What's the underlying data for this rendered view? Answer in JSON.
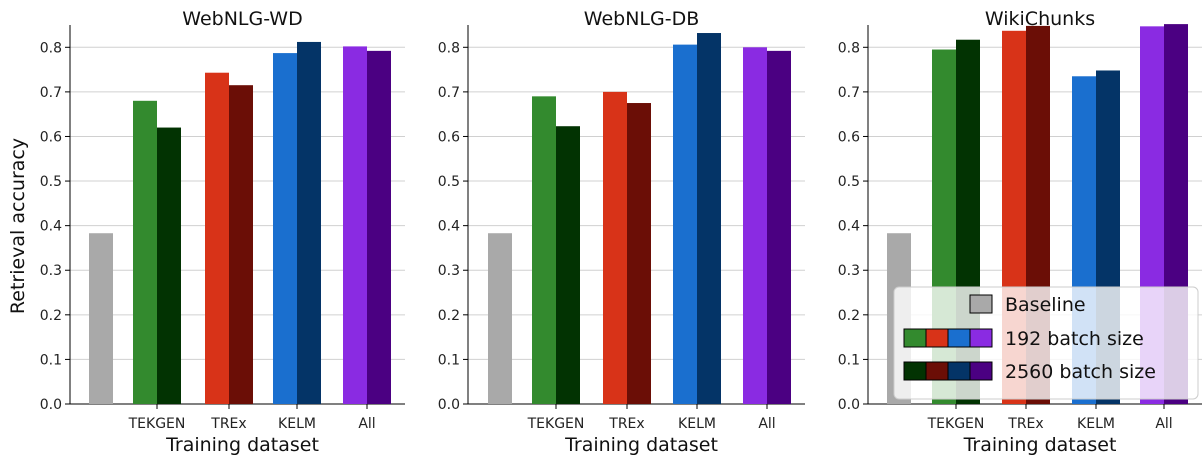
{
  "ylabel": "Retrieval accuracy",
  "colors": {
    "baseline": "#a9a9a9",
    "groups_192": [
      "#338a2e",
      "#d83318",
      "#1a6fcf",
      "#8a2be2"
    ],
    "groups_2560": [
      "#023302",
      "#6b0e06",
      "#043467",
      "#4b0082"
    ]
  },
  "legend": {
    "entries": [
      "Baseline",
      "192 batch size",
      "2560 batch size"
    ]
  },
  "chart_data": [
    {
      "type": "bar",
      "title": "WebNLG-WD",
      "xlabel": "Training dataset",
      "ylabel": "Retrieval accuracy",
      "categories": [
        "TEKGEN",
        "TREx",
        "KELM",
        "All"
      ],
      "baseline": 0.383,
      "series": [
        {
          "name": "192 batch size",
          "values": [
            0.68,
            0.743,
            0.787,
            0.802
          ]
        },
        {
          "name": "2560 batch size",
          "values": [
            0.62,
            0.715,
            0.812,
            0.792
          ]
        }
      ],
      "ylim": [
        0,
        0.85
      ],
      "yticks": [
        0.0,
        0.1,
        0.2,
        0.3,
        0.4,
        0.5,
        0.6,
        0.7,
        0.8
      ],
      "grid": true
    },
    {
      "type": "bar",
      "title": "WebNLG-DB",
      "xlabel": "Training dataset",
      "ylabel": "",
      "categories": [
        "TEKGEN",
        "TREx",
        "KELM",
        "All"
      ],
      "baseline": 0.383,
      "series": [
        {
          "name": "192 batch size",
          "values": [
            0.69,
            0.7,
            0.806,
            0.8
          ]
        },
        {
          "name": "2560 batch size",
          "values": [
            0.623,
            0.675,
            0.832,
            0.792
          ]
        }
      ],
      "ylim": [
        0,
        0.85
      ],
      "yticks": [
        0.0,
        0.1,
        0.2,
        0.3,
        0.4,
        0.5,
        0.6,
        0.7,
        0.8
      ],
      "grid": true
    },
    {
      "type": "bar",
      "title": "WikiChunks",
      "xlabel": "Training dataset",
      "ylabel": "",
      "categories": [
        "TEKGEN",
        "TREx",
        "KELM",
        "All"
      ],
      "baseline": 0.383,
      "series": [
        {
          "name": "192 batch size",
          "values": [
            0.795,
            0.837,
            0.735,
            0.847
          ]
        },
        {
          "name": "2560 batch size",
          "values": [
            0.817,
            0.848,
            0.748,
            0.852
          ]
        }
      ],
      "ylim": [
        0,
        0.85
      ],
      "yticks": [
        0.0,
        0.1,
        0.2,
        0.3,
        0.4,
        0.5,
        0.6,
        0.7,
        0.8
      ],
      "grid": true,
      "legend_placement": "lower-right"
    }
  ]
}
